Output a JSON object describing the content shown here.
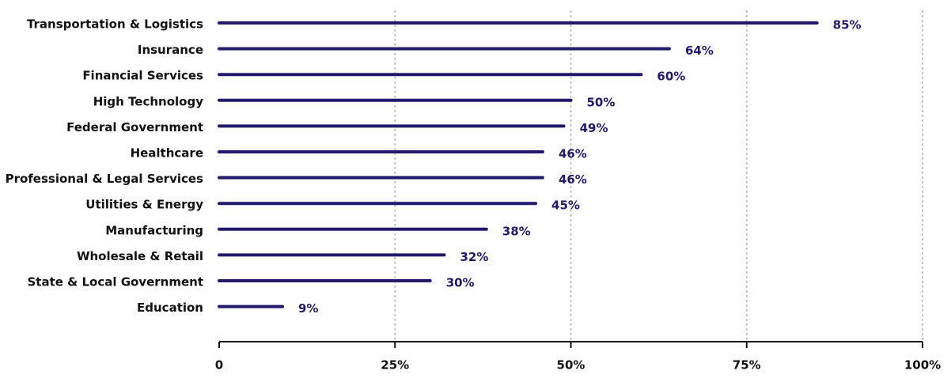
{
  "chart_data": {
    "type": "hbar",
    "categories": [
      "Transportation & Logistics",
      "Insurance",
      "Financial Services",
      "High Technology",
      "Federal Government",
      "Healthcare",
      "Professional & Legal Services",
      "Utilities & Energy",
      "Manufacturing",
      "Wholesale & Retail",
      "State & Local Government",
      "Education"
    ],
    "values": [
      85,
      64,
      60,
      50,
      49,
      46,
      46,
      45,
      38,
      32,
      30,
      9
    ],
    "value_labels": [
      "85%",
      "64%",
      "60%",
      "50%",
      "49%",
      "46%",
      "46%",
      "45%",
      "38%",
      "32%",
      "30%",
      "9%"
    ],
    "color": "#23196b",
    "xlim": [
      0,
      100
    ],
    "xticks": [
      0,
      {
        "value": 25,
        "label": "25%"
      },
      {
        "value": 50,
        "label": "50%"
      },
      {
        "value": 75,
        "label": "75%"
      },
      {
        "value": 100,
        "label": "100%"
      }
    ],
    "grid": true
  }
}
